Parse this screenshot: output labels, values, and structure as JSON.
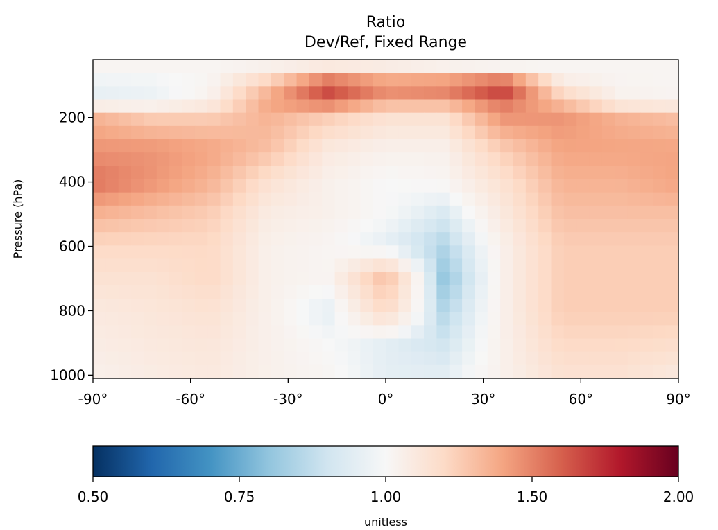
{
  "chart_data": {
    "type": "heatmap",
    "title": "Ratio",
    "subtitle": "Dev/Ref, Fixed Range",
    "xlabel": "",
    "ylabel": "Pressure (hPa)",
    "x_ticks": [
      -90,
      -60,
      -30,
      0,
      30,
      60,
      90
    ],
    "x_tick_labels": [
      "-90°",
      "-60°",
      "-30°",
      "0°",
      "30°",
      "60°",
      "90°"
    ],
    "y_ticks": [
      200,
      400,
      600,
      800,
      1000
    ],
    "y_tick_labels": [
      "200",
      "400",
      "600",
      "800",
      "1000"
    ],
    "xlim": [
      -90,
      90
    ],
    "ylim": [
      1010,
      20
    ],
    "y_inverted": true,
    "colormap": "RdBu_r",
    "grid": [
      [
        1.02,
        1.02,
        1.02,
        1.05,
        1.1,
        1.08,
        1.05,
        1.03,
        1.02,
        1.02,
        1.02
      ],
      [
        0.96,
        0.97,
        1.02,
        1.3,
        1.75,
        1.55,
        1.6,
        1.8,
        1.1,
        1.03,
        1.02
      ],
      [
        0.96,
        0.97,
        1.05,
        1.4,
        1.55,
        1.35,
        1.35,
        1.55,
        1.3,
        1.05,
        1.03
      ],
      [
        1.35,
        1.25,
        1.25,
        1.35,
        1.25,
        1.15,
        1.15,
        1.45,
        1.45,
        1.35,
        1.3
      ],
      [
        1.45,
        1.45,
        1.4,
        1.3,
        1.1,
        1.05,
        1.05,
        1.25,
        1.4,
        1.4,
        1.4
      ],
      [
        1.55,
        1.45,
        1.35,
        1.15,
        1.05,
        1.0,
        1.02,
        1.15,
        1.35,
        1.35,
        1.4
      ],
      [
        1.35,
        1.3,
        1.25,
        1.08,
        1.05,
        1.0,
        0.92,
        1.1,
        1.3,
        1.3,
        1.3
      ],
      [
        1.2,
        1.2,
        1.2,
        1.05,
        1.02,
        0.95,
        0.85,
        1.05,
        1.25,
        1.25,
        1.25
      ],
      [
        1.15,
        1.15,
        1.2,
        1.05,
        1.02,
        1.3,
        0.8,
        1.05,
        1.25,
        1.25,
        1.25
      ],
      [
        1.1,
        1.12,
        1.15,
        1.05,
        0.95,
        1.2,
        0.85,
        1.05,
        1.25,
        1.25,
        1.25
      ],
      [
        1.08,
        1.1,
        1.12,
        1.05,
        1.0,
        0.95,
        0.9,
        1.05,
        1.2,
        1.2,
        1.18
      ],
      [
        1.05,
        1.08,
        1.1,
        1.05,
        1.02,
        0.95,
        0.95,
        1.05,
        1.15,
        1.15,
        1.1
      ]
    ],
    "colorbar": {
      "label": "unitless",
      "min": 0.5,
      "max": 2.0,
      "center": 1.0,
      "ticks": [
        0.5,
        0.75,
        1.0,
        1.5,
        2.0
      ],
      "tick_labels": [
        "0.50",
        "0.75",
        "1.00",
        "1.50",
        "2.00"
      ],
      "placement": "bottom",
      "colors": [
        "#053061",
        "#2166ac",
        "#4393c3",
        "#92c5de",
        "#d1e5f0",
        "#f7f7f7",
        "#fddbc7",
        "#f4a582",
        "#d6604d",
        "#b2182b",
        "#67001f"
      ]
    },
    "grid_latitudes": [
      -90,
      -72,
      -54,
      -36,
      -18,
      0,
      18,
      36,
      54,
      72,
      90
    ],
    "grid_pressures": [
      50,
      100,
      150,
      200,
      300,
      400,
      500,
      600,
      700,
      800,
      900,
      1000
    ]
  }
}
